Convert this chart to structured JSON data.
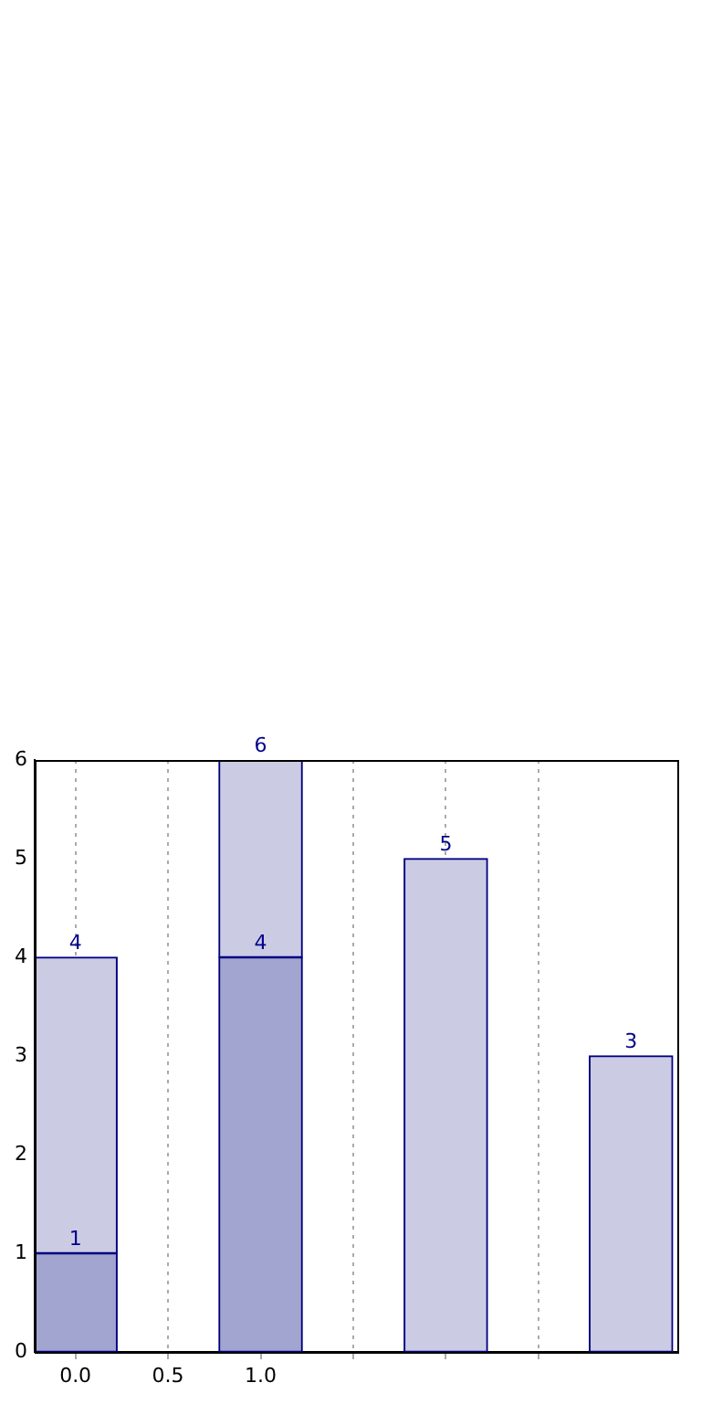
{
  "chart_data": {
    "type": "bar",
    "stacked": true,
    "series": [
      {
        "color": "#a3a5d1",
        "x": [
          0,
          1
        ],
        "values": [
          1,
          4
        ],
        "value_labels": [
          "1",
          "4"
        ]
      },
      {
        "color": "#cbcbe3",
        "x": [
          0,
          1,
          2,
          3
        ],
        "values": [
          3,
          2,
          5,
          3
        ]
      }
    ],
    "totals": [
      "4",
      "6",
      "5",
      "3"
    ],
    "xlim": [
      -0.22,
      3.25
    ],
    "xticks": [
      {
        "value": 0,
        "label": "0.0"
      },
      {
        "value": 0.5,
        "label": "0.5"
      },
      {
        "value": 1,
        "label": "1.0"
      },
      {
        "value": 1.5,
        "label": null
      },
      {
        "value": 2,
        "label": null
      },
      {
        "value": 2.5,
        "label": null
      }
    ],
    "ylim": [
      0,
      6
    ],
    "yticks": [
      0,
      1,
      2,
      3,
      4,
      5,
      6
    ],
    "grid": "x",
    "legend": false
  }
}
